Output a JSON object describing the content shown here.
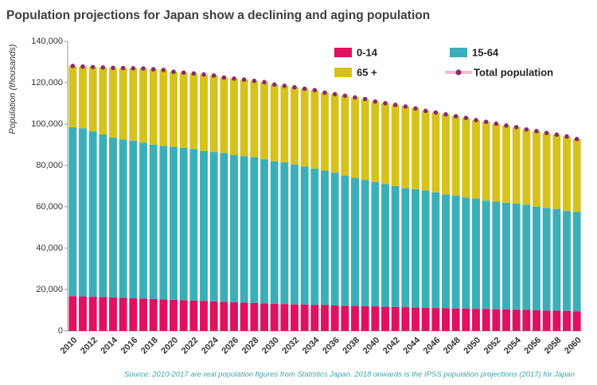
{
  "chart_data": {
    "type": "bar",
    "stacked": true,
    "title": "Population projections for Japan show a declining and aging population",
    "y_label": "Population  (thousands)",
    "source": "Source: 2010-2017 are real population figures from Statistics Japan. 2018 onwards is the IPSS population projections (2017) for Japan",
    "categories": [
      "2010",
      null,
      "2012",
      null,
      "2014",
      null,
      "2016",
      null,
      "2018",
      null,
      "2020",
      null,
      "2022",
      null,
      "2024",
      null,
      "2026",
      null,
      "2028",
      null,
      "2030",
      null,
      "2032",
      null,
      "2034",
      null,
      "2036",
      null,
      "2038",
      null,
      "2040",
      null,
      "2042",
      null,
      "2044",
      null,
      "2046",
      null,
      "2048",
      null,
      "2050",
      null,
      "2052",
      null,
      "2054",
      null,
      "2056",
      null,
      "2058",
      null,
      "2060"
    ],
    "series": [
      {
        "name": "0-14",
        "color": "#e0115f",
        "kind": "bar",
        "values": [
          16800,
          16700,
          16500,
          16400,
          16200,
          16000,
          15800,
          15600,
          15400,
          15200,
          15100,
          14900,
          14700,
          14500,
          14300,
          14100,
          13900,
          13700,
          13500,
          13300,
          13200,
          13000,
          12800,
          12700,
          12500,
          12500,
          12300,
          12200,
          12100,
          12000,
          11900,
          11700,
          11600,
          11500,
          11300,
          11200,
          11100,
          11000,
          10900,
          10800,
          10700,
          10600,
          10500,
          10400,
          10300,
          10200,
          10100,
          9900,
          9800,
          9700,
          9500
        ]
      },
      {
        "name": "15-64",
        "color": "#3aafb9",
        "kind": "bar",
        "values": [
          81700,
          81300,
          80000,
          78600,
          77300,
          76500,
          76200,
          75400,
          74600,
          74300,
          73900,
          73600,
          73300,
          72500,
          72200,
          71900,
          71100,
          70800,
          70500,
          69700,
          68800,
          68500,
          67700,
          66800,
          66000,
          65000,
          64200,
          62800,
          61900,
          61000,
          60100,
          59300,
          58400,
          57500,
          57200,
          56800,
          55900,
          55000,
          54600,
          53700,
          53300,
          52400,
          52000,
          51600,
          51200,
          50800,
          49900,
          49600,
          49200,
          48300,
          48000
        ]
      },
      {
        "name": "65 +",
        "color": "#d7c21d",
        "kind": "bar",
        "values": [
          29600,
          29800,
          31100,
          32400,
          33700,
          34600,
          35000,
          35900,
          36500,
          36700,
          36300,
          36400,
          36500,
          37000,
          37000,
          36500,
          37000,
          37000,
          36900,
          37300,
          37100,
          37000,
          37300,
          37600,
          37900,
          37700,
          38000,
          38700,
          38900,
          39100,
          38900,
          39100,
          39300,
          39500,
          39100,
          38400,
          38600,
          38700,
          38300,
          38500,
          37900,
          38100,
          37700,
          37300,
          37000,
          36400,
          36600,
          36200,
          35900,
          36000,
          35300
        ]
      },
      {
        "name": "Total population",
        "color": "#8b2a6e",
        "line_color": "#f2bcd4",
        "kind": "marker",
        "values": [
          128100,
          127800,
          127600,
          127400,
          127200,
          127100,
          127000,
          126900,
          126500,
          126200,
          125300,
          124900,
          124500,
          124000,
          123500,
          122500,
          122000,
          121500,
          120900,
          120300,
          119100,
          118500,
          117800,
          117100,
          116400,
          115200,
          114500,
          113700,
          112900,
          112100,
          110900,
          110100,
          109300,
          108500,
          107600,
          106400,
          105600,
          104700,
          103800,
          103000,
          101900,
          101100,
          100200,
          99300,
          98500,
          97400,
          96600,
          95700,
          94900,
          94000,
          92800
        ]
      }
    ],
    "ylim": [
      0,
      140000
    ],
    "yticks": [
      0,
      {
        "value": 20000,
        "label": "20,000"
      },
      {
        "value": 40000,
        "label": "40,000"
      },
      {
        "value": 60000,
        "label": "60,000"
      },
      {
        "value": 80000,
        "label": "80,000"
      },
      {
        "value": 100000,
        "label": "100,000"
      },
      {
        "value": 120000,
        "label": "120,000"
      },
      {
        "value": 140000,
        "label": "140,000"
      }
    ],
    "grid": false
  }
}
